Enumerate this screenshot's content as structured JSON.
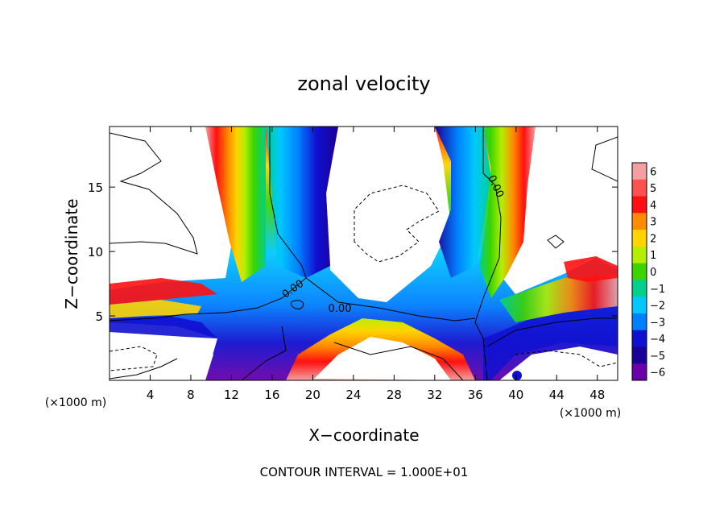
{
  "chart_data": {
    "type": "heatmap",
    "title": "zonal velocity",
    "xlabel": "X−coordinate",
    "ylabel": "Z−coordinate",
    "x_unit_left": "(×1000 m)",
    "x_unit_right": "(×1000 m)",
    "footer": "CONTOUR INTERVAL = 1.000E+01",
    "xlim": [
      0,
      50
    ],
    "ylim": [
      0,
      19.7
    ],
    "x_ticks": [
      4,
      8,
      12,
      16,
      20,
      24,
      28,
      32,
      36,
      40,
      44,
      48
    ],
    "x_tick_labels": [
      "4",
      "8",
      "12",
      "16",
      "20",
      "24",
      "28",
      "32",
      "36",
      "40",
      "44",
      "48"
    ],
    "y_ticks": [
      5,
      10,
      15
    ],
    "y_tick_labels": [
      "5",
      "10",
      "15"
    ],
    "colorbar": {
      "min": -6,
      "max": 6,
      "levels": [
        6,
        5,
        4,
        3,
        2,
        1,
        0,
        -1,
        -2,
        -3,
        -4,
        -5,
        -6
      ],
      "level_labels": [
        "6",
        "5",
        "4",
        "3",
        "2",
        "1",
        "0",
        "−1",
        "−2",
        "−3",
        "−4",
        "−5",
        "−6"
      ],
      "colors": [
        "#f4a0a0",
        "#ff5050",
        "#ff1010",
        "#ff8c00",
        "#ffd400",
        "#b4ee00",
        "#3cd400",
        "#00d08c",
        "#00c8ff",
        "#0080ff",
        "#1010d0",
        "#1a0096",
        "#6a00a8"
      ]
    },
    "contour_labels": [
      "0.00",
      "0.00",
      "0.00"
    ],
    "grid": false,
    "legend": "right (colorbar)"
  }
}
